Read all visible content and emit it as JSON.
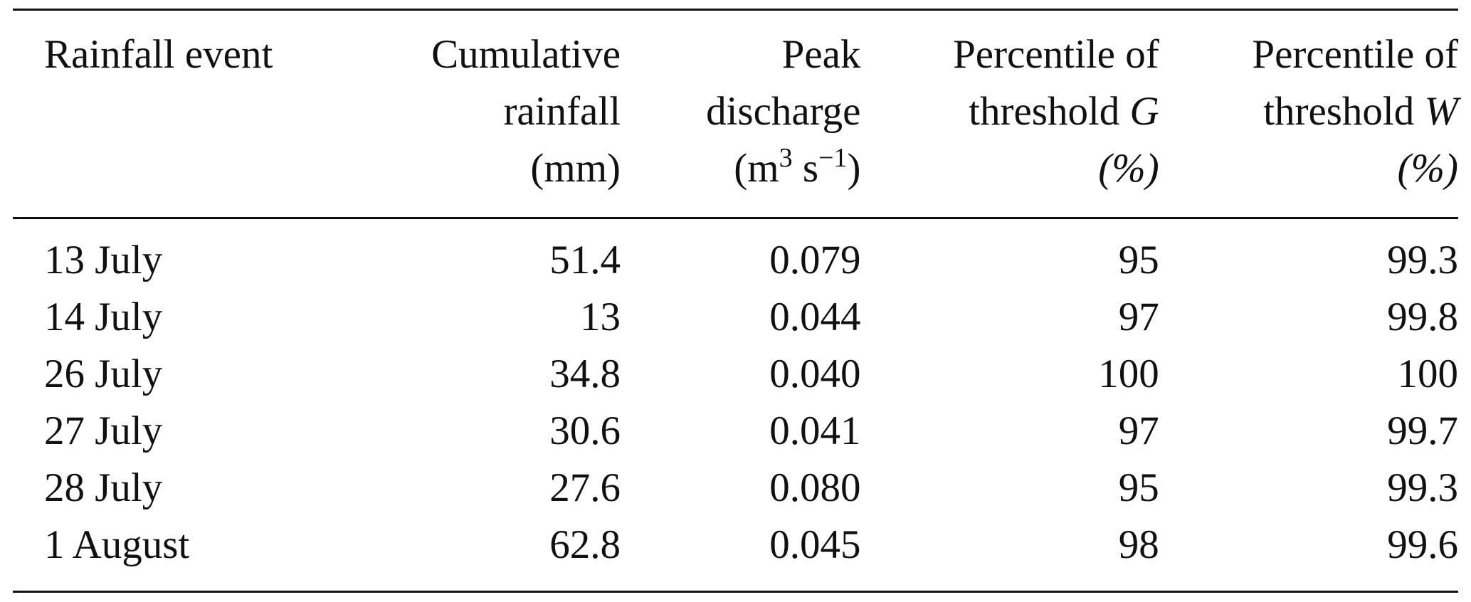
{
  "table": {
    "headers": [
      {
        "lines": [
          "Rainfall event"
        ]
      },
      {
        "lines": [
          "Cumulative",
          "rainfall",
          "(mm)"
        ]
      },
      {
        "lines": [
          "Peak",
          "discharge"
        ],
        "unit": {
          "pre": "(m",
          "sup1": "3",
          "mid": " s",
          "sup2": "−1",
          "post": ")"
        }
      },
      {
        "lines": [
          "Percentile of"
        ],
        "threshold": {
          "text": "threshold ",
          "symbol": "G"
        },
        "unit_text": "(%)"
      },
      {
        "lines": [
          "Percentile of"
        ],
        "threshold": {
          "text": "threshold ",
          "symbol": "W"
        },
        "unit_text": "(%)"
      }
    ],
    "rows": [
      [
        "13 July",
        "51.4",
        "0.079",
        "95",
        "99.3"
      ],
      [
        "14 July",
        "13",
        "0.044",
        "97",
        "99.8"
      ],
      [
        "26 July",
        "34.8",
        "0.040",
        "100",
        "100"
      ],
      [
        "27 July",
        "30.6",
        "0.041",
        "97",
        "99.7"
      ],
      [
        "28 July",
        "27.6",
        "0.080",
        "95",
        "99.3"
      ],
      [
        "1 August",
        "62.8",
        "0.045",
        "98",
        "99.6"
      ]
    ]
  }
}
